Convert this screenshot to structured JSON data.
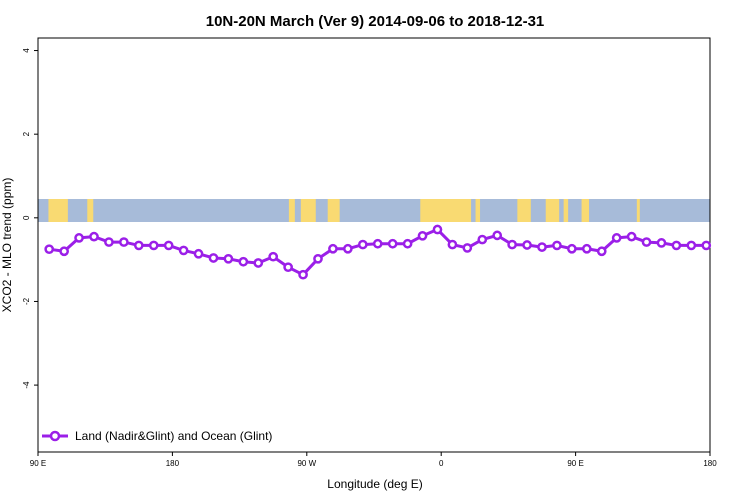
{
  "chart_data": {
    "type": "line",
    "title": "10N-20N March (Ver 9)   2014-09-06 to 2018-12-31",
    "xlabel": "Longitude (deg E)",
    "ylabel": "XCO2 - MLO trend (ppm)",
    "x_ticks": [
      "90 E",
      "180",
      "90 W",
      "0",
      "90 E",
      "180"
    ],
    "x_tick_values": [
      90,
      180,
      270,
      360,
      450,
      540
    ],
    "xlim": [
      90,
      540
    ],
    "y_ticks": [
      "4",
      "2",
      "0",
      "-2",
      "-4"
    ],
    "y_tick_values": [
      4,
      2,
      0,
      -2,
      -4
    ],
    "ylim": [
      -5.6,
      4.3
    ],
    "grid": false,
    "legend_position": "bottom-left",
    "series": [
      {
        "name": "Land (Nadir&Glint) and Ocean (Glint)",
        "color": "#9b1fe8",
        "x": [
          97.5,
          107.5,
          117.5,
          127.5,
          137.5,
          147.5,
          157.5,
          167.5,
          177.5,
          187.5,
          197.5,
          207.5,
          217.5,
          227.5,
          237.5,
          247.5,
          257.5,
          267.5,
          277.5,
          287.5,
          297.5,
          307.5,
          317.5,
          327.5,
          337.5,
          347.5,
          357.5,
          367.5,
          377.5,
          387.5,
          397.5,
          407.5,
          417.5,
          427.5,
          437.5,
          447.5,
          457.5,
          467.5,
          477.5,
          487.5,
          497.5,
          507.5,
          517.5,
          527.5,
          537.5
        ],
        "y": [
          -0.75,
          -0.8,
          -0.48,
          -0.45,
          -0.58,
          -0.58,
          -0.66,
          -0.66,
          -0.66,
          -0.78,
          -0.86,
          -0.96,
          -0.98,
          -1.05,
          -1.08,
          -0.93,
          -1.18,
          -1.36,
          -0.98,
          -0.74,
          -0.74,
          -0.64,
          -0.62,
          -0.62,
          -0.62,
          -0.43,
          -0.28,
          -0.64,
          -0.72,
          -0.52,
          -0.42,
          -0.64,
          -0.65,
          -0.7,
          -0.66,
          -0.74,
          -0.74,
          -0.8,
          -0.48,
          -0.45,
          -0.58,
          -0.6,
          -0.66,
          -0.66,
          -0.66
        ]
      }
    ],
    "land_ocean_strip": {
      "y_range": [
        -0.1,
        0.45
      ],
      "ocean_color": "#a7bbd9",
      "land_color": "#f9da72",
      "land_lon_ranges": [
        [
          97,
          110
        ],
        [
          123,
          127
        ],
        [
          125,
          126.5
        ],
        [
          258,
          262
        ],
        [
          266,
          276
        ],
        [
          284,
          292
        ],
        [
          346,
          380
        ],
        [
          383,
          386
        ],
        [
          411,
          420
        ],
        [
          430,
          439
        ],
        [
          442,
          445
        ],
        [
          454,
          459
        ],
        [
          491,
          493
        ]
      ]
    }
  }
}
